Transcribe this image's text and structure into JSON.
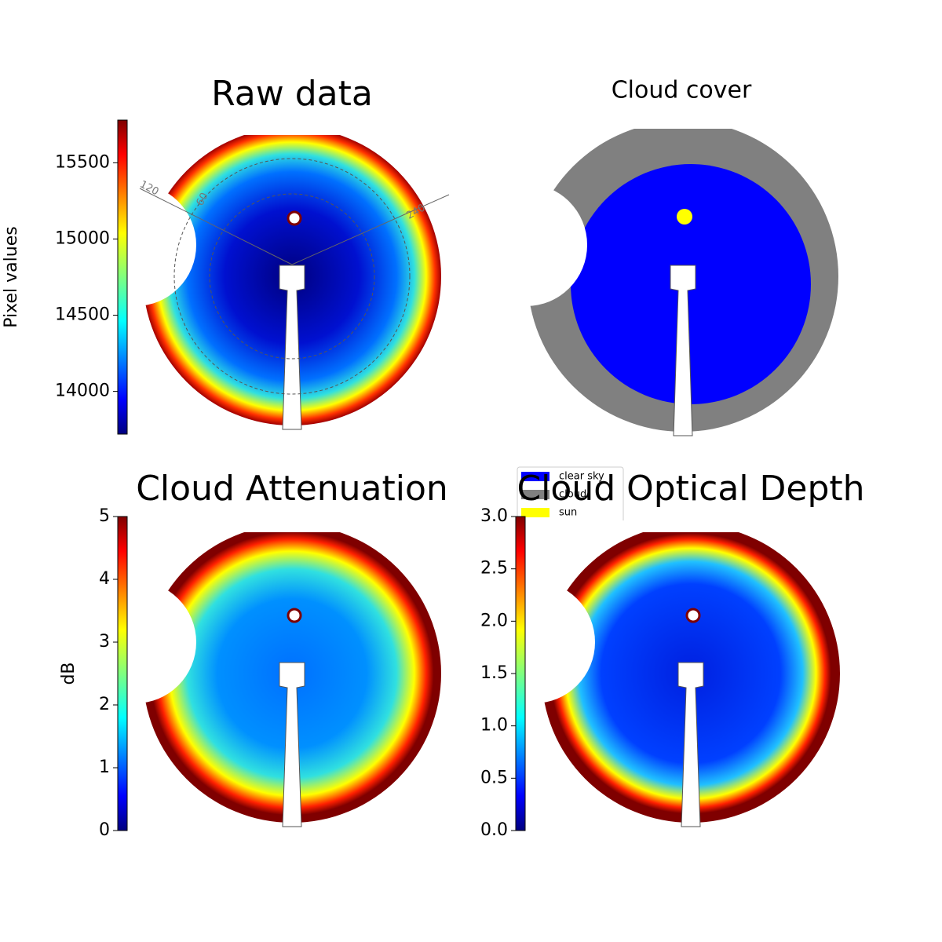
{
  "chart_data": [
    {
      "type": "image",
      "title": "Raw data",
      "colorbar_label": "Pixel values",
      "colormap": "jet",
      "ylim": [
        13720,
        15780
      ],
      "yticks": [
        14000,
        14500,
        15000,
        15500
      ],
      "annotations": [
        "120",
        "60",
        "240"
      ]
    },
    {
      "type": "image",
      "title": "Cloud cover",
      "series": [
        {
          "name": "clear sky",
          "color": "#0000ff"
        },
        {
          "name": "cloud",
          "color": "#808080"
        },
        {
          "name": "sun",
          "color": "#ffff00"
        }
      ]
    },
    {
      "type": "image",
      "title": "Cloud Attenuation",
      "colorbar_label": "dB",
      "colormap": "jet",
      "ylim": [
        0,
        5
      ],
      "yticks": [
        0,
        1,
        2,
        3,
        4,
        5
      ]
    },
    {
      "type": "image",
      "title": "Cloud Optical Depth",
      "colormap": "jet",
      "ylim": [
        0,
        3
      ],
      "yticks": [
        {
          "value": 0,
          "label": "0.0"
        },
        0.5,
        {
          "value": 1,
          "label": "1.0"
        },
        1.5,
        {
          "value": 2,
          "label": "2.0"
        },
        2.5,
        {
          "value": 3,
          "label": "3.0"
        }
      ]
    }
  ]
}
